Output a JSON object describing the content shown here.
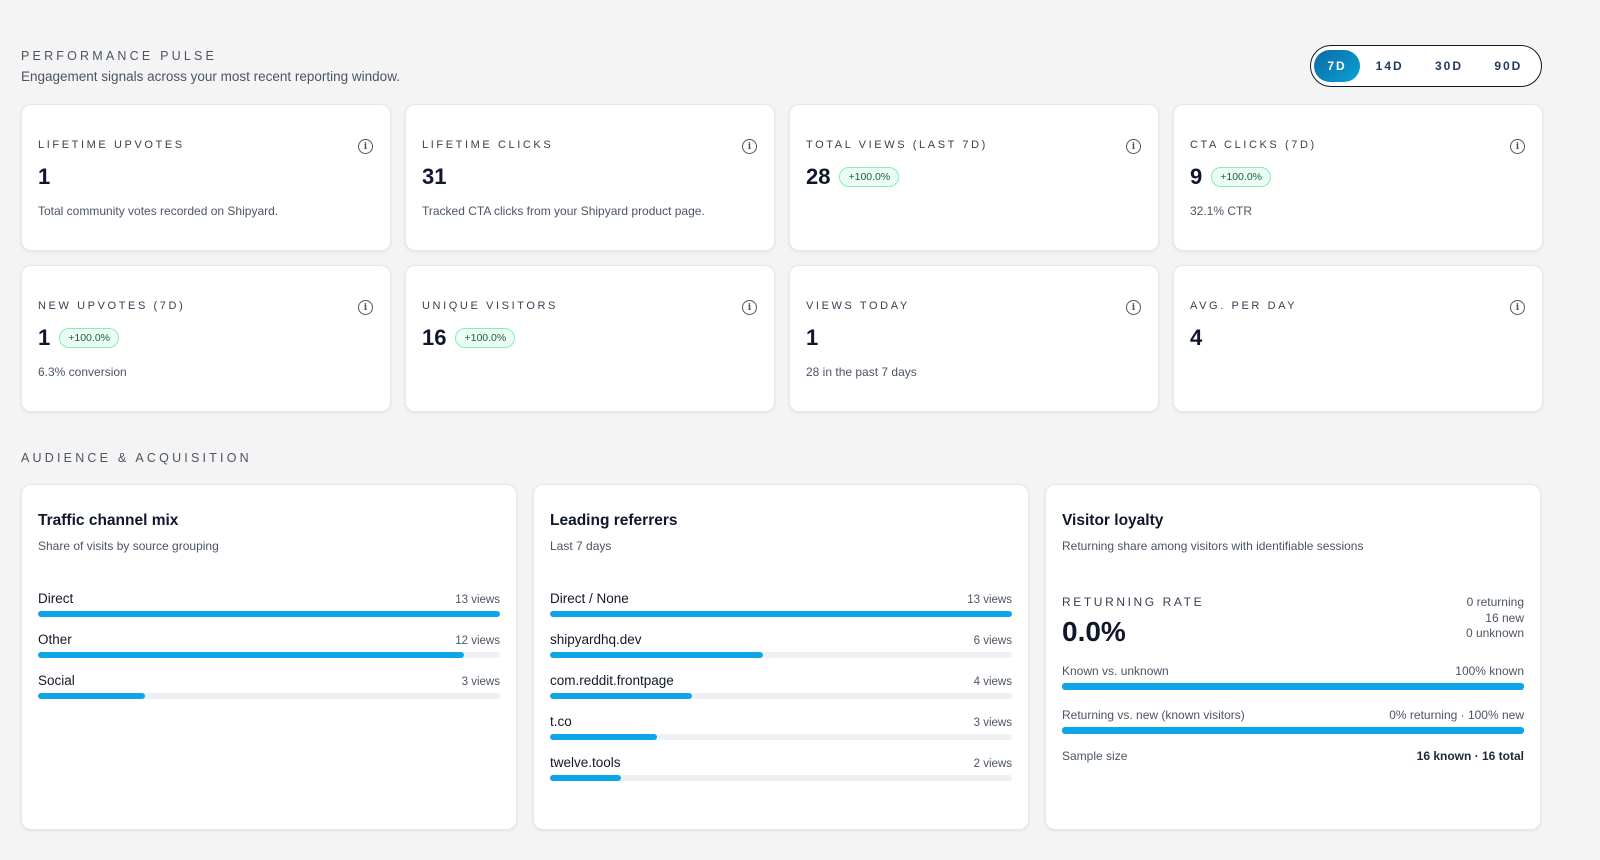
{
  "pulse": {
    "eyebrow": "PERFORMANCE PULSE",
    "subtitle": "Engagement signals across your most recent reporting window.",
    "ranges": [
      {
        "label": "7D",
        "active": true
      },
      {
        "label": "14D",
        "active": false
      },
      {
        "label": "30D",
        "active": false
      },
      {
        "label": "90D",
        "active": false
      }
    ]
  },
  "stats": [
    {
      "label": "LIFETIME UPVOTES",
      "value": "1",
      "badge": "",
      "note": "Total community votes recorded on Shipyard."
    },
    {
      "label": "LIFETIME CLICKS",
      "value": "31",
      "badge": "",
      "note": "Tracked CTA clicks from your Shipyard product page."
    },
    {
      "label": "TOTAL VIEWS (LAST 7D)",
      "value": "28",
      "badge": "+100.0%",
      "note": ""
    },
    {
      "label": "CTA CLICKS (7D)",
      "value": "9",
      "badge": "+100.0%",
      "note": "32.1% CTR"
    },
    {
      "label": "NEW UPVOTES (7D)",
      "value": "1",
      "badge": "+100.0%",
      "note": "6.3% conversion"
    },
    {
      "label": "UNIQUE VISITORS",
      "value": "16",
      "badge": "+100.0%",
      "note": ""
    },
    {
      "label": "VIEWS TODAY",
      "value": "1",
      "badge": "",
      "note": "28 in the past 7 days"
    },
    {
      "label": "AVG. PER DAY",
      "value": "4",
      "badge": "",
      "note": ""
    }
  ],
  "audience": {
    "eyebrow": "AUDIENCE & ACQUISITION",
    "traffic": {
      "title": "Traffic channel mix",
      "subtitle": "Share of visits by source grouping",
      "items": [
        {
          "name": "Direct",
          "count": "13 views",
          "fraction": 1.0
        },
        {
          "name": "Other",
          "count": "12 views",
          "fraction": 0.923
        },
        {
          "name": "Social",
          "count": "3 views",
          "fraction": 0.231
        }
      ]
    },
    "referrers": {
      "title": "Leading referrers",
      "subtitle": "Last 7 days",
      "items": [
        {
          "name": "Direct / None",
          "count": "13 views",
          "fraction": 1.0
        },
        {
          "name": "shipyardhq.dev",
          "count": "6 views",
          "fraction": 0.462
        },
        {
          "name": "com.reddit.frontpage",
          "count": "4 views",
          "fraction": 0.308
        },
        {
          "name": "t.co",
          "count": "3 views",
          "fraction": 0.231
        },
        {
          "name": "twelve.tools",
          "count": "2 views",
          "fraction": 0.154
        }
      ]
    },
    "loyalty": {
      "title": "Visitor loyalty",
      "subtitle": "Returning share among visitors with identifiable sessions",
      "rate_label": "RETURNING RATE",
      "rate_value": "0.0%",
      "side": [
        "0 returning",
        "16 new",
        "0 unknown"
      ],
      "known_label": "Known vs. unknown",
      "known_value": "100% known",
      "known_fraction": 1.0,
      "returning_label": "Returning vs. new (known visitors)",
      "returning_value": "0% returning · 100% new",
      "returning_fraction": 1.0,
      "sample_label": "Sample size",
      "sample_value": "16 known · 16 total"
    }
  },
  "colors": {
    "accent": "#0ea5e9",
    "badge_bg": "#ecfdf5",
    "badge_border": "#86efac",
    "badge_text": "#166534"
  }
}
